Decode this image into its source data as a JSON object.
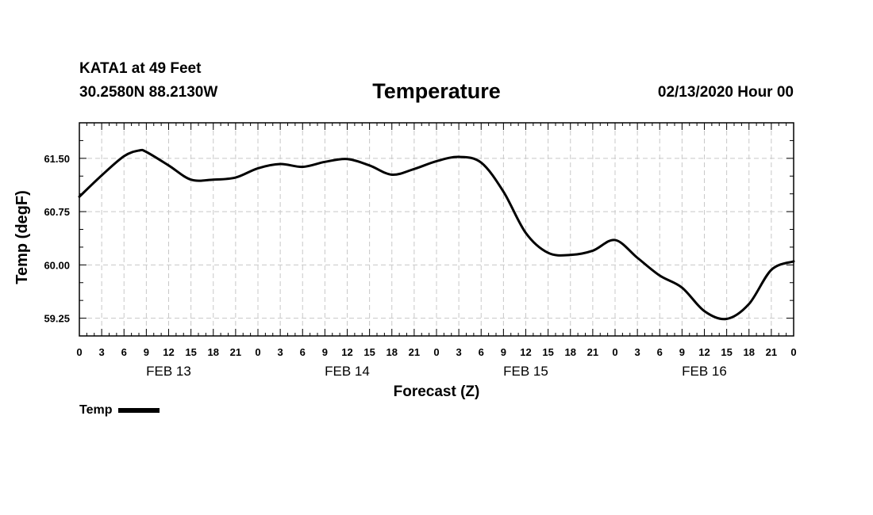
{
  "header": {
    "station": "KATA1 at 49 Feet",
    "coords": "30.2580N 88.2130W",
    "run_time": "02/13/2020 Hour 00"
  },
  "legend": {
    "label": "Temp",
    "color": "#000000"
  },
  "chart_data": {
    "type": "line",
    "title": "Temperature",
    "xlabel": "Forecast (Z)",
    "ylabel": "Temp (degF)",
    "x_unit": "hours since 02/13/2020 00Z",
    "xlim": [
      0,
      96
    ],
    "ylim": [
      59.0,
      62.0
    ],
    "y_ticks": [
      59.25,
      60.0,
      60.75,
      61.5
    ],
    "y_tick_labels": [
      "59.25",
      "60.00",
      "60.75",
      "61.50"
    ],
    "x_ticks": [
      0,
      3,
      6,
      9,
      12,
      15,
      18,
      21,
      24,
      27,
      30,
      33,
      36,
      39,
      42,
      45,
      48,
      51,
      54,
      57,
      60,
      63,
      66,
      69,
      72,
      75,
      78,
      81,
      84,
      87,
      90,
      93,
      96
    ],
    "x_tick_labels": [
      "0",
      "3",
      "6",
      "9",
      "12",
      "15",
      "18",
      "21",
      "0",
      "3",
      "6",
      "9",
      "12",
      "15",
      "18",
      "21",
      "0",
      "3",
      "6",
      "9",
      "12",
      "15",
      "18",
      "21",
      "0",
      "3",
      "6",
      "9",
      "12",
      "15",
      "18",
      "21",
      "0"
    ],
    "day_labels": [
      {
        "label": "FEB 13",
        "x": 12
      },
      {
        "label": "FEB 14",
        "x": 36
      },
      {
        "label": "FEB 15",
        "x": 60
      },
      {
        "label": "FEB 16",
        "x": 84
      }
    ],
    "grid": true,
    "series": [
      {
        "name": "Temp",
        "color": "#000000",
        "x": [
          0,
          3,
          6,
          8,
          9,
          12,
          15,
          18,
          21,
          24,
          27,
          30,
          33,
          36,
          39,
          42,
          45,
          48,
          51,
          54,
          57,
          60,
          63,
          66,
          69,
          72,
          75,
          78,
          81,
          84,
          87,
          90,
          93,
          96
        ],
        "values": [
          60.96,
          61.26,
          61.53,
          61.61,
          61.59,
          61.4,
          61.2,
          61.2,
          61.23,
          61.36,
          61.42,
          61.38,
          61.45,
          61.49,
          61.4,
          61.27,
          61.35,
          61.46,
          61.52,
          61.44,
          61.03,
          60.45,
          60.17,
          60.14,
          60.2,
          60.35,
          60.1,
          59.85,
          59.68,
          59.35,
          59.24,
          59.45,
          59.93,
          60.05
        ]
      }
    ]
  }
}
